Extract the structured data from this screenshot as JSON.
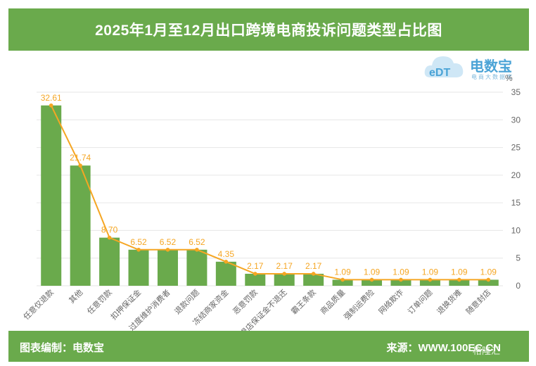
{
  "title": "2025年1月至12月出口跨境电商投诉问题类型占比图",
  "logo": {
    "name": "电数宝",
    "sub": "电商大数据库",
    "mark": "eDT"
  },
  "footer": {
    "left": "图表编制：电数宝",
    "right": "来源：WWW.100EC.CN"
  },
  "watermark": "格隆汇",
  "chart_data": {
    "type": "bar",
    "unit": "%",
    "categories": [
      "任意仅退款",
      "其他",
      "任意罚款",
      "扣押保证金",
      "过度维护消费者",
      "退款问题",
      "冻结商家资金",
      "恶意罚款",
      "退店保证金不退还",
      "霸王条款",
      "商品质量",
      "强制运费险",
      "网络欺诈",
      "订单问题",
      "退换货难",
      "随意封店"
    ],
    "values": [
      32.61,
      21.74,
      8.7,
      6.52,
      6.52,
      6.52,
      4.35,
      2.17,
      2.17,
      2.17,
      1.09,
      1.09,
      1.09,
      1.09,
      1.09,
      1.09
    ],
    "value_labels": [
      "32.61",
      "21.74",
      "8.70",
      "6.52",
      "6.52",
      "6.52",
      "4.35",
      "2.17",
      "2.17",
      "2.17",
      "1.09",
      "1.09",
      "1.09",
      "1.09",
      "1.09",
      "1.09"
    ],
    "line_series": true,
    "ylim": [
      0,
      35
    ],
    "yticks": [
      "0",
      "5",
      "10",
      "15",
      "20",
      "25",
      "30",
      "35"
    ],
    "y_axis_side": "right",
    "grid": true,
    "colors": {
      "bar": "#6aaa4c",
      "line": "#f5a623",
      "label": "#f5a623",
      "axis_text": "#666666",
      "grid": "#e6e6e6"
    }
  }
}
